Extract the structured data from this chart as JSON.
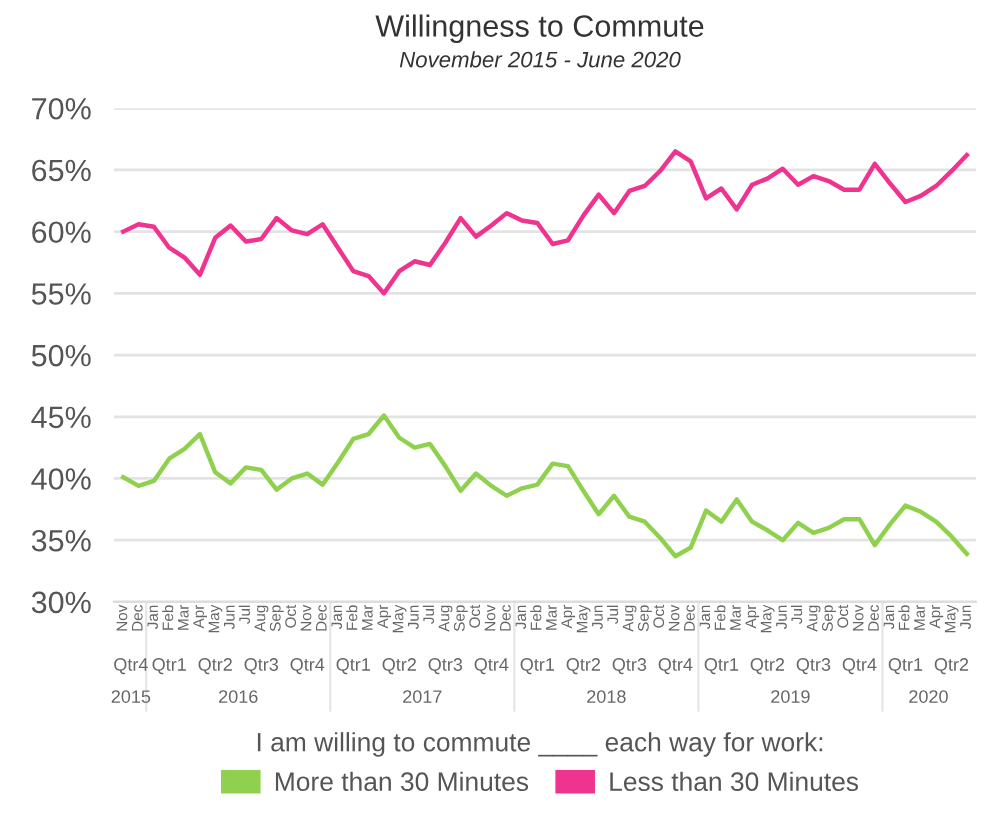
{
  "chart_data": {
    "type": "line",
    "title": "Willingness to Commute",
    "subtitle": "November 2015 - June 2020",
    "categories": [
      "Nov",
      "Dec",
      "Jan",
      "Feb",
      "Mar",
      "Apr",
      "May",
      "Jun",
      "Jul",
      "Aug",
      "Sep",
      "Oct",
      "Nov",
      "Dec",
      "Jan",
      "Feb",
      "Mar",
      "Apr",
      "May",
      "Jun",
      "Jul",
      "Aug",
      "Sep",
      "Oct",
      "Nov",
      "Dec",
      "Jan",
      "Feb",
      "Mar",
      "Apr",
      "May",
      "Jun",
      "Jul",
      "Aug",
      "Sep",
      "Oct",
      "Nov",
      "Dec",
      "Jan",
      "Feb",
      "Mar",
      "Apr",
      "May",
      "Jun",
      "Jul",
      "Aug",
      "Sep",
      "Oct",
      "Nov",
      "Dec",
      "Jan",
      "Feb",
      "Mar",
      "Apr",
      "May",
      "Jun"
    ],
    "series": [
      {
        "name": "More than 30 Minutes",
        "color": "#8fd14f",
        "values": [
          40.1,
          39.4,
          39.8,
          41.6,
          42.4,
          43.6,
          40.5,
          39.6,
          40.9,
          40.7,
          39.1,
          40.0,
          40.4,
          39.5,
          41.3,
          43.2,
          43.6,
          45.1,
          43.3,
          42.5,
          42.8,
          41.0,
          39.0,
          40.4,
          39.4,
          38.6,
          39.2,
          39.5,
          41.2,
          41.0,
          39.0,
          37.1,
          38.6,
          36.9,
          36.5,
          35.2,
          33.7,
          34.4,
          37.4,
          36.5,
          38.3,
          36.5,
          35.8,
          35.0,
          36.4,
          35.6,
          36.0,
          36.7,
          36.7,
          34.6,
          36.3,
          37.8,
          37.3,
          36.5,
          35.3,
          33.9
        ]
      },
      {
        "name": "Less than 30 Minutes",
        "color": "#f0338f",
        "values": [
          60.0,
          60.6,
          60.4,
          58.7,
          57.9,
          56.5,
          59.5,
          60.5,
          59.2,
          59.4,
          61.1,
          60.1,
          59.8,
          60.6,
          58.7,
          56.8,
          56.4,
          55.0,
          56.8,
          57.6,
          57.3,
          59.1,
          61.1,
          59.6,
          60.5,
          61.5,
          60.9,
          60.7,
          59.0,
          59.3,
          61.3,
          63.0,
          61.5,
          63.3,
          63.7,
          64.9,
          66.5,
          65.7,
          62.7,
          63.5,
          61.8,
          63.8,
          64.3,
          65.1,
          63.8,
          64.5,
          64.1,
          63.4,
          63.4,
          65.5,
          63.9,
          62.4,
          62.9,
          63.7,
          64.9,
          66.2
        ]
      }
    ],
    "ylim": [
      30,
      70
    ],
    "yticks": [
      {
        "value": 30,
        "label": "30%"
      },
      {
        "value": 35,
        "label": "35%"
      },
      {
        "value": 40,
        "label": "40%"
      },
      {
        "value": 45,
        "label": "45%"
      },
      {
        "value": 50,
        "label": "50%"
      },
      {
        "value": 55,
        "label": "55%"
      },
      {
        "value": 60,
        "label": "60%"
      },
      {
        "value": 65,
        "label": "65%"
      },
      {
        "value": 70,
        "label": "70%"
      }
    ],
    "grid": "y",
    "legend": "bottom",
    "legend_title": "I am willing to commute ____ each way for work:",
    "annotations": [
      "Qtr4",
      "Qtr1",
      "Qtr2",
      "Qtr3",
      "Qtr4",
      "Qtr1",
      "Qtr2",
      "Qtr3",
      "Qtr4",
      "Qtr1",
      "Qtr2",
      "Qtr3",
      "Qtr4",
      "Qtr1",
      "Qtr2",
      "Qtr3",
      "Qtr4",
      "Qtr1",
      "Qtr2",
      "2015",
      "2016",
      "2017",
      "2018",
      "2019",
      "2020"
    ]
  }
}
